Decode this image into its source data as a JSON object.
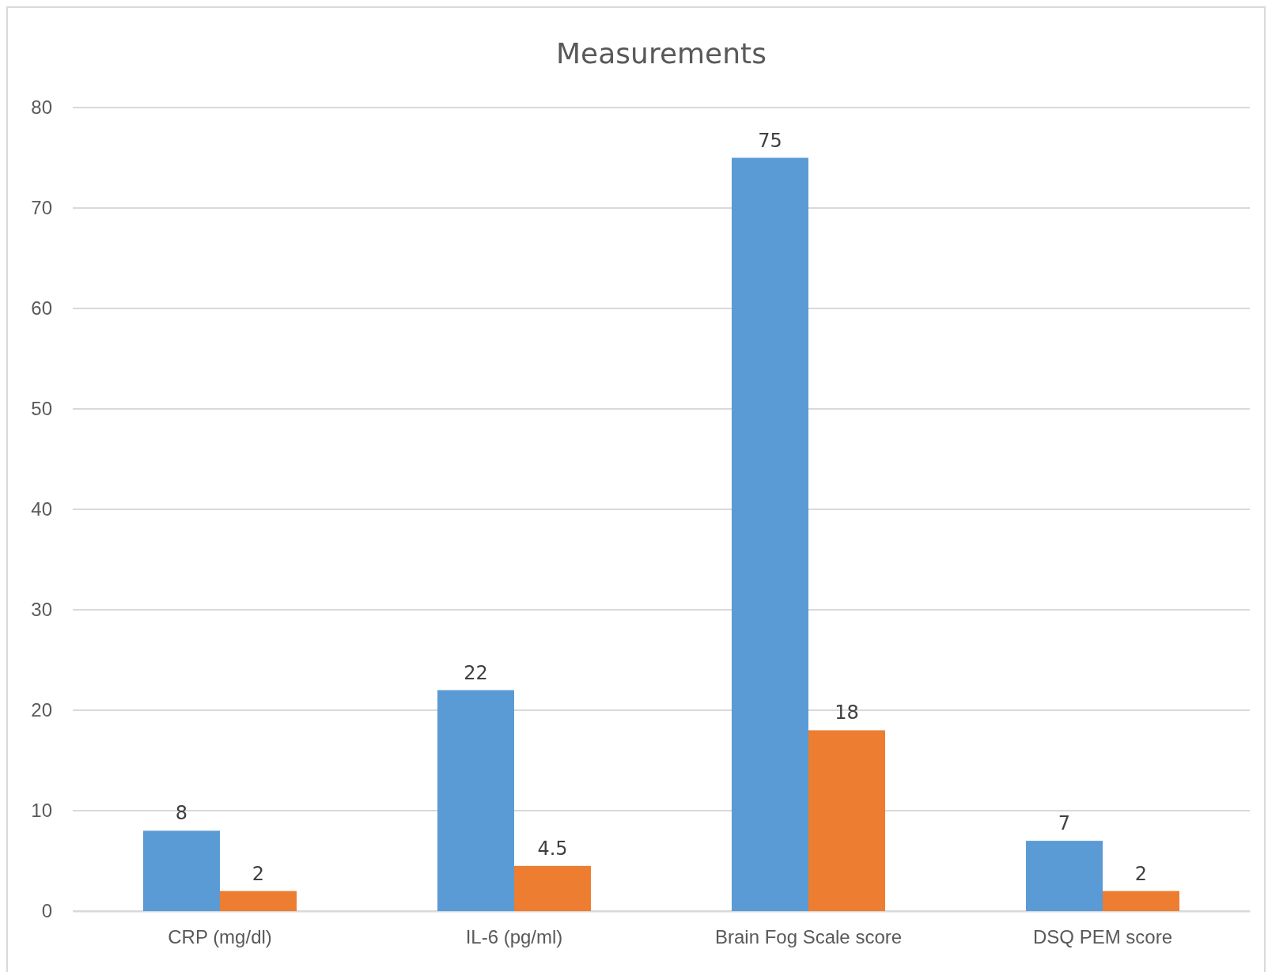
{
  "chart_data": {
    "type": "bar",
    "title": "Measurements",
    "categories": [
      "CRP (mg/dl)",
      "IL-6 (pg/ml)",
      "Brain Fog Scale score",
      "DSQ PEM score"
    ],
    "series": [
      {
        "color": "#5b9bd5",
        "values": [
          8,
          22,
          75,
          7
        ]
      },
      {
        "color": "#ed7d31",
        "values": [
          2,
          4.5,
          18,
          2
        ]
      }
    ],
    "ylim": [
      0,
      80
    ],
    "yticks": [
      0,
      10,
      20,
      30,
      40,
      50,
      60,
      70,
      80
    ],
    "grid": "y",
    "data_labels": true
  }
}
